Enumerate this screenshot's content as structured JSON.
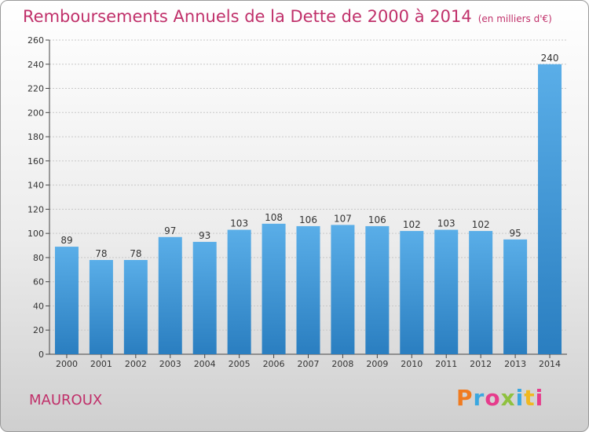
{
  "chart_data": {
    "type": "bar",
    "title": "Remboursements Annuels de la Dette de 2000 à 2014",
    "subtitle": "(en milliers d'€)",
    "categories": [
      "2000",
      "2001",
      "2002",
      "2003",
      "2004",
      "2005",
      "2006",
      "2007",
      "2008",
      "2009",
      "2010",
      "2011",
      "2012",
      "2013",
      "2014"
    ],
    "values": [
      89,
      78,
      78,
      97,
      93,
      103,
      108,
      106,
      107,
      106,
      102,
      103,
      102,
      95,
      240
    ],
    "ylim": [
      0,
      260
    ],
    "yticks": [
      0,
      20,
      40,
      60,
      80,
      100,
      120,
      140,
      160,
      180,
      200,
      220,
      240,
      260
    ],
    "xlabel": "",
    "ylabel": "",
    "grid": true
  },
  "footer": {
    "commune": "MAUROUX",
    "brand": "Proxiti"
  },
  "colors": {
    "title": "#c0306a",
    "bar_top": "#5aaee8",
    "bar_bottom": "#2a7ec0",
    "grid": "#c8c8c8",
    "logo": [
      "#f07b20",
      "#3aa7e0",
      "#e63c8c",
      "#8fc13f",
      "#3aa7e0",
      "#f0b820",
      "#e63c8c"
    ]
  }
}
